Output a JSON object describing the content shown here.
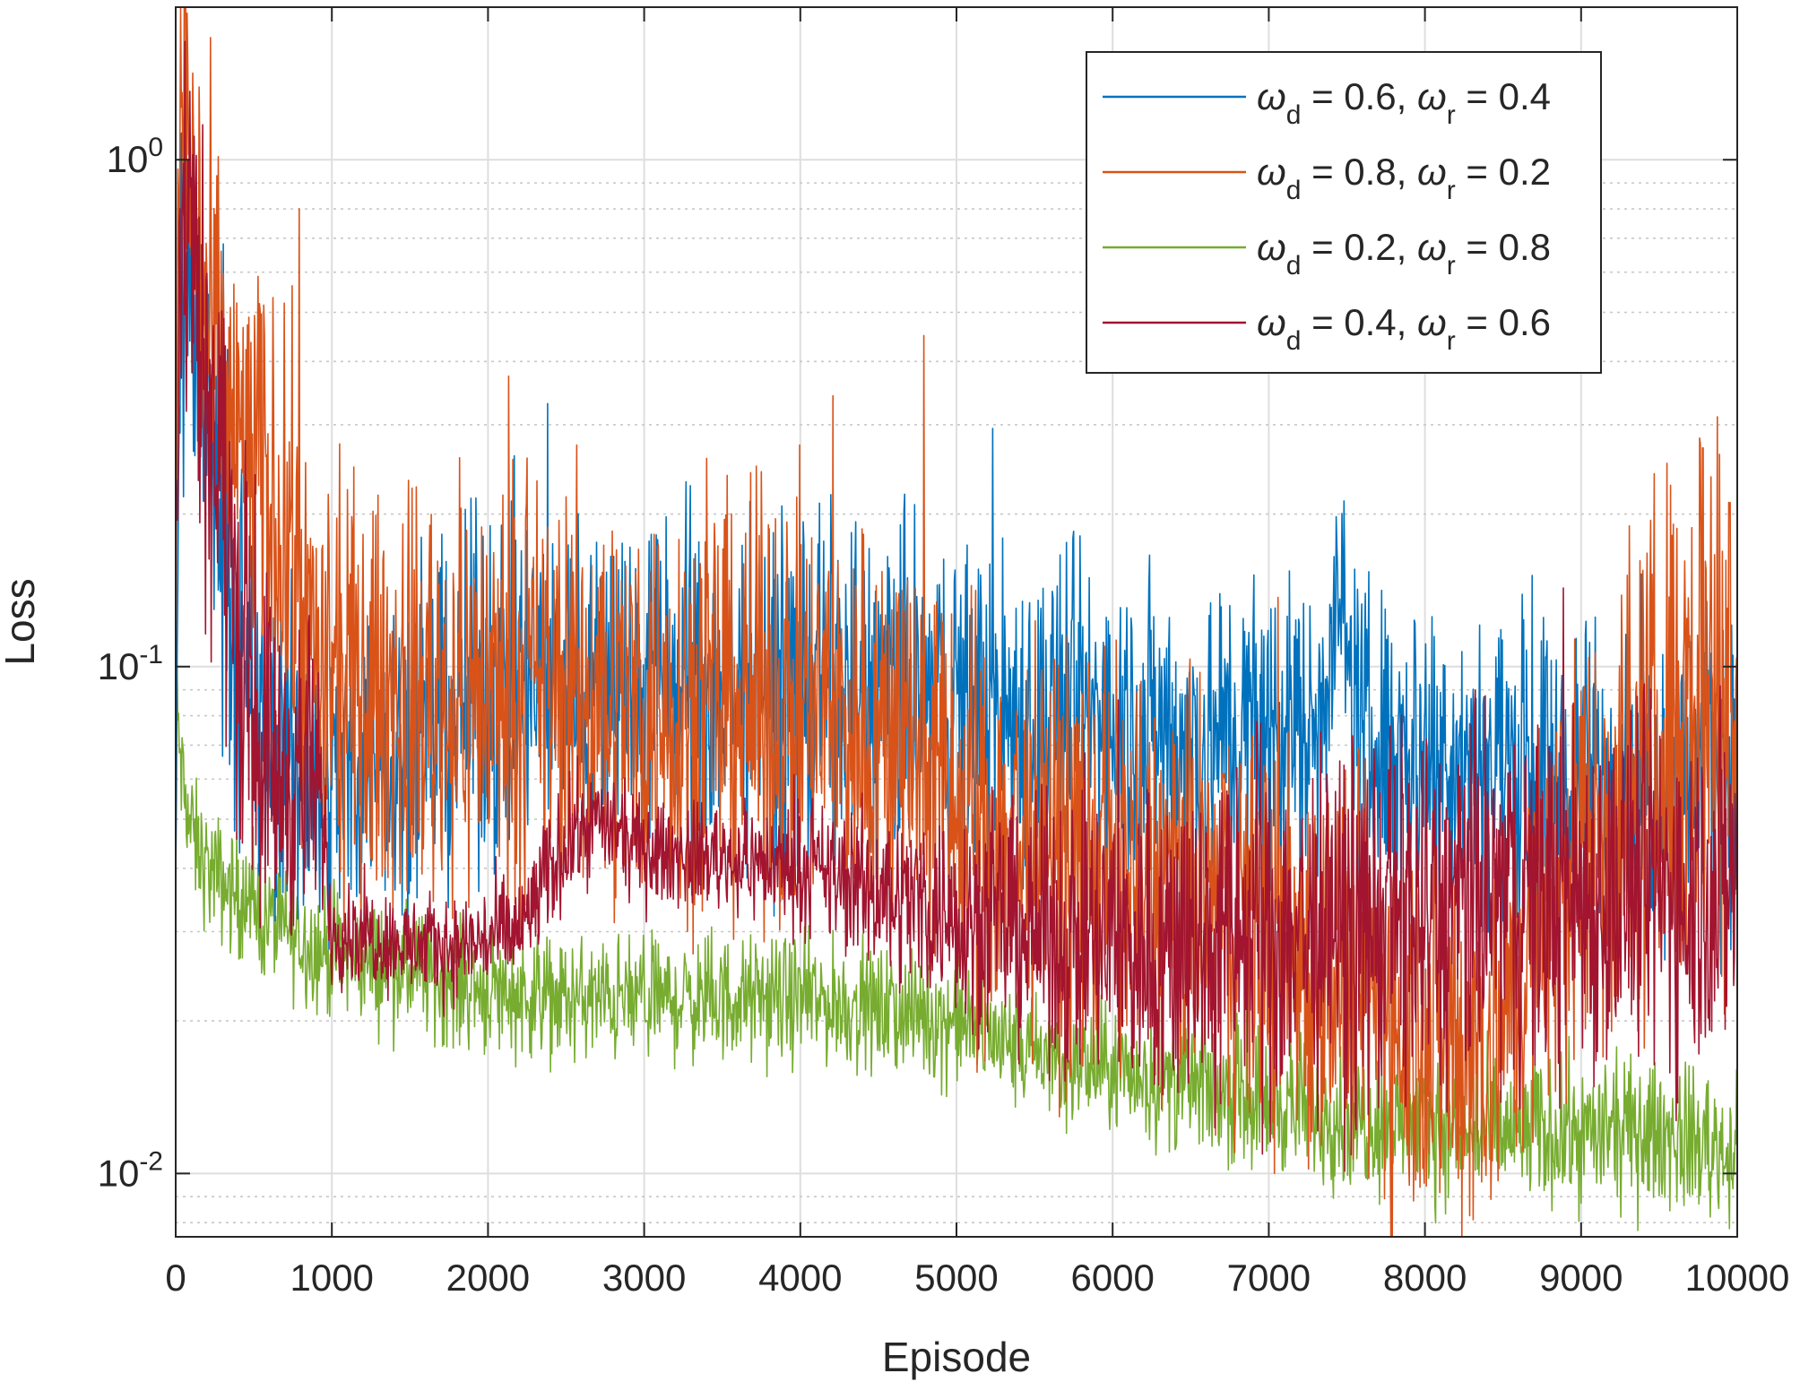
{
  "chart_data": {
    "type": "line",
    "title": "",
    "xlabel": "Episode",
    "ylabel": "Loss",
    "x_scale": "linear",
    "y_scale": "log",
    "xlim": [
      0,
      10000
    ],
    "ylim": [
      0.0075,
      2.0
    ],
    "xticks": [
      0,
      1000,
      2000,
      3000,
      4000,
      5000,
      6000,
      7000,
      8000,
      9000,
      10000
    ],
    "xtick_labels": [
      "0",
      "1000",
      "2000",
      "3000",
      "4000",
      "5000",
      "6000",
      "7000",
      "8000",
      "9000",
      "10000"
    ],
    "yticks": [
      {
        "value": 1,
        "base": "10",
        "exp": "0"
      },
      {
        "value": 0.1,
        "base": "10",
        "exp": "-1"
      },
      {
        "value": 0.01,
        "base": "10",
        "exp": "-2"
      }
    ],
    "grid": true,
    "legend_position": "top-right",
    "series": [
      {
        "name": "ωd = 0.6, ωr = 0.4",
        "legend": {
          "sym1": "ω",
          "sub1": "d",
          "val1": " = 0.6, ",
          "sym2": "ω",
          "sub2": "r",
          "val2": " = 0.4"
        },
        "color": "#0072BD",
        "x": [
          0,
          20,
          60,
          100,
          160,
          250,
          350,
          450,
          550,
          700,
          850,
          1000,
          1300,
          1600,
          2000,
          2500,
          3000,
          3500,
          4000,
          4500,
          4800,
          5000,
          5500,
          6000,
          6500,
          7000,
          7300,
          7450,
          7600,
          8000,
          8500,
          9000,
          9500,
          10000
        ],
        "y": [
          0.03,
          0.5,
          0.6,
          0.5,
          0.4,
          0.25,
          0.15,
          0.08,
          0.07,
          0.065,
          0.06,
          0.06,
          0.07,
          0.075,
          0.09,
          0.095,
          0.095,
          0.09,
          0.09,
          0.09,
          0.085,
          0.085,
          0.08,
          0.08,
          0.07,
          0.075,
          0.075,
          0.14,
          0.07,
          0.07,
          0.065,
          0.06,
          0.06,
          0.065
        ],
        "spread": [
          0.05,
          0.2,
          0.2,
          0.2,
          0.18,
          0.18,
          0.18,
          0.18,
          0.16,
          0.16,
          0.16,
          0.15,
          0.15,
          0.16,
          0.17,
          0.17,
          0.17,
          0.17,
          0.17,
          0.17,
          0.17,
          0.17,
          0.16,
          0.16,
          0.16,
          0.16,
          0.16,
          0.1,
          0.16,
          0.15,
          0.15,
          0.15,
          0.15,
          0.15
        ]
      },
      {
        "name": "ωd = 0.8, ωr = 0.2",
        "legend": {
          "sym1": "ω",
          "sub1": "d",
          "val1": " = 0.8, ",
          "sym2": "ω",
          "sub2": "r",
          "val2": " = 0.2"
        },
        "color": "#D95319",
        "x": [
          0,
          20,
          50,
          100,
          200,
          350,
          500,
          700,
          800,
          900,
          1000,
          1500,
          2000,
          2500,
          3000,
          3500,
          4000,
          4500,
          4800,
          5000,
          5500,
          6000,
          6500,
          7000,
          7500,
          8000,
          8300,
          8500,
          8800,
          9000,
          9400,
          9700,
          10000
        ],
        "y": [
          0.1,
          1.0,
          1.5,
          0.9,
          0.45,
          0.3,
          0.25,
          0.18,
          0.14,
          0.1,
          0.09,
          0.085,
          0.09,
          0.09,
          0.085,
          0.085,
          0.08,
          0.075,
          0.07,
          0.05,
          0.045,
          0.04,
          0.035,
          0.03,
          0.025,
          0.02,
          0.018,
          0.02,
          0.035,
          0.045,
          0.06,
          0.09,
          0.1
        ],
        "spread": [
          0.15,
          0.25,
          0.25,
          0.22,
          0.22,
          0.2,
          0.2,
          0.2,
          0.2,
          0.18,
          0.2,
          0.2,
          0.2,
          0.2,
          0.2,
          0.2,
          0.2,
          0.2,
          0.2,
          0.2,
          0.2,
          0.2,
          0.2,
          0.2,
          0.2,
          0.2,
          0.2,
          0.2,
          0.2,
          0.22,
          0.25,
          0.3,
          0.3
        ],
        "spikes": [
          {
            "x": 790,
            "y": 0.8
          },
          {
            "x": 4790,
            "y": 0.45
          },
          {
            "x": 9780,
            "y": 0.27
          },
          {
            "x": 9950,
            "y": 0.2
          }
        ]
      },
      {
        "name": "ωd = 0.2, ωr = 0.8",
        "legend": {
          "sym1": "ω",
          "sub1": "d",
          "val1": " = 0.2, ",
          "sym2": "ω",
          "sub2": "r",
          "val2": " = 0.8"
        },
        "color": "#77AC30",
        "x": [
          0,
          10,
          40,
          80,
          120,
          200,
          400,
          700,
          1000,
          1500,
          2000,
          2500,
          3000,
          3500,
          4000,
          4500,
          5000,
          5500,
          6000,
          6500,
          7000,
          7500,
          8000,
          8500,
          9000,
          9500,
          10000
        ],
        "y": [
          0.12,
          0.08,
          0.06,
          0.05,
          0.045,
          0.04,
          0.035,
          0.03,
          0.027,
          0.025,
          0.023,
          0.022,
          0.022,
          0.022,
          0.022,
          0.021,
          0.02,
          0.017,
          0.016,
          0.015,
          0.014,
          0.013,
          0.0125,
          0.012,
          0.012,
          0.012,
          0.011
        ],
        "spread": [
          0.05,
          0.05,
          0.06,
          0.06,
          0.06,
          0.06,
          0.06,
          0.06,
          0.06,
          0.06,
          0.06,
          0.06,
          0.06,
          0.06,
          0.06,
          0.06,
          0.06,
          0.06,
          0.06,
          0.07,
          0.07,
          0.07,
          0.07,
          0.07,
          0.07,
          0.07,
          0.07
        ]
      },
      {
        "name": "ωd = 0.4, ωr = 0.6",
        "legend": {
          "sym1": "ω",
          "sub1": "d",
          "val1": " = 0.4, ",
          "sym2": "ω",
          "sub2": "r",
          "val2": " = 0.6"
        },
        "color": "#A2142F",
        "x": [
          0,
          20,
          60,
          100,
          150,
          250,
          400,
          550,
          700,
          850,
          950,
          1000,
          1200,
          1500,
          1800,
          2200,
          2500,
          2700,
          2900,
          3000,
          3500,
          4000,
          4500,
          5000,
          5500,
          6000,
          6500,
          7000,
          7500,
          8000,
          8500,
          9000,
          9500,
          10000
        ],
        "y": [
          0.12,
          0.6,
          0.8,
          0.9,
          0.5,
          0.3,
          0.12,
          0.07,
          0.06,
          0.06,
          0.05,
          0.03,
          0.03,
          0.028,
          0.028,
          0.03,
          0.045,
          0.05,
          0.045,
          0.043,
          0.042,
          0.04,
          0.036,
          0.033,
          0.03,
          0.028,
          0.028,
          0.03,
          0.03,
          0.032,
          0.035,
          0.036,
          0.036,
          0.038
        ],
        "spread": [
          0.15,
          0.25,
          0.25,
          0.25,
          0.25,
          0.22,
          0.2,
          0.18,
          0.16,
          0.16,
          0.1,
          0.05,
          0.05,
          0.05,
          0.05,
          0.06,
          0.06,
          0.05,
          0.05,
          0.05,
          0.05,
          0.06,
          0.08,
          0.1,
          0.12,
          0.15,
          0.17,
          0.18,
          0.18,
          0.18,
          0.18,
          0.18,
          0.18,
          0.18
        ]
      }
    ]
  }
}
